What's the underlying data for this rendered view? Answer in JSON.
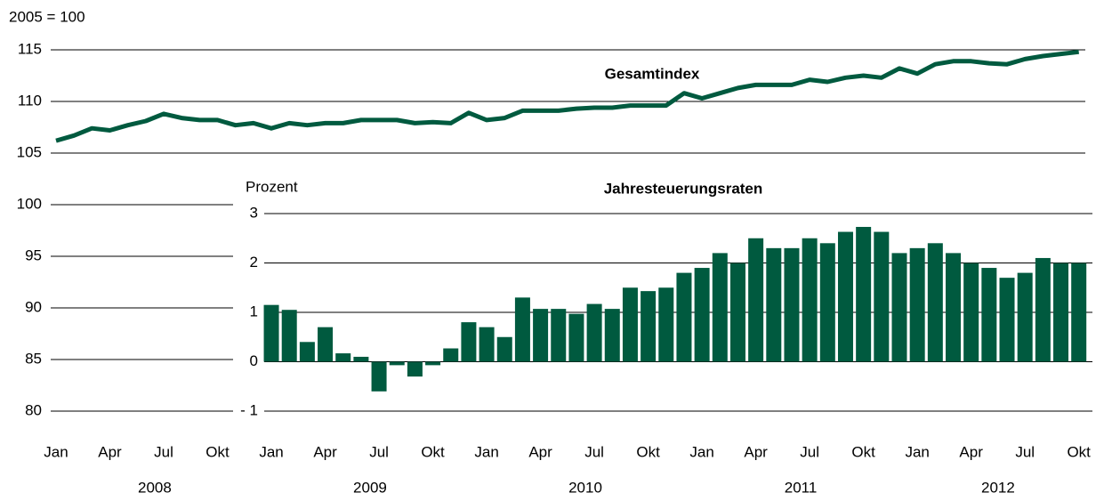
{
  "chart_data": [
    {
      "type": "line",
      "y_label": "2005 = 100",
      "categories": [
        "Jan",
        null,
        null,
        "Apr",
        null,
        null,
        "Jul",
        null,
        null,
        "Okt",
        null,
        null,
        "Jan",
        null,
        null,
        "Apr",
        null,
        null,
        "Jul",
        null,
        null,
        "Okt",
        null,
        null,
        "Jan",
        null,
        null,
        "Apr",
        null,
        null,
        "Jul",
        null,
        null,
        "Okt",
        null,
        null,
        "Jan",
        null,
        null,
        "Apr",
        null,
        null,
        "Jul",
        null,
        null,
        "Okt",
        null,
        null,
        "Jan",
        null,
        null,
        "Apr",
        null,
        null,
        "Jul",
        null,
        null,
        "Okt"
      ],
      "years": [
        "2008",
        "2009",
        "2010",
        "2011",
        "2012"
      ],
      "series": [
        {
          "name": "Gesamtindex",
          "color": "#005a3f",
          "values": [
            106.2,
            106.7,
            107.4,
            107.2,
            107.7,
            108.1,
            108.8,
            108.4,
            108.2,
            108.2,
            107.7,
            107.9,
            107.4,
            107.9,
            107.7,
            107.9,
            107.9,
            108.2,
            108.2,
            108.2,
            107.9,
            108.0,
            107.9,
            108.9,
            108.2,
            108.4,
            109.1,
            109.1,
            109.1,
            109.3,
            109.4,
            109.4,
            109.6,
            109.6,
            109.6,
            110.8,
            110.3,
            110.8,
            111.3,
            111.6,
            111.6,
            111.6,
            112.1,
            111.9,
            112.3,
            112.5,
            112.3,
            113.2,
            112.7,
            113.6,
            113.9,
            113.9,
            113.7,
            113.6,
            114.1,
            114.4,
            114.6,
            114.8
          ]
        }
      ],
      "ylim": [
        80,
        115
      ],
      "yticks": [
        80,
        85,
        90,
        95,
        100,
        105,
        110,
        115
      ],
      "grid": true
    },
    {
      "type": "bar",
      "title": "Jahresteuerungsraten",
      "y_label": "Prozent",
      "color": "#005a3f",
      "values": [
        null,
        null,
        null,
        null,
        null,
        null,
        null,
        null,
        null,
        null,
        null,
        null,
        1.15,
        1.05,
        0.4,
        0.7,
        0.17,
        0.1,
        -0.6,
        -0.07,
        -0.3,
        -0.07,
        0.27,
        0.8,
        0.7,
        0.5,
        1.3,
        1.07,
        1.07,
        0.97,
        1.17,
        1.07,
        1.5,
        1.43,
        1.5,
        1.8,
        1.9,
        2.2,
        2.0,
        2.5,
        2.3,
        2.3,
        2.5,
        2.4,
        2.63,
        2.73,
        2.63,
        2.2,
        2.3,
        2.4,
        2.2,
        2.0,
        1.9,
        1.7,
        1.8,
        2.1,
        2.0,
        2.0
      ],
      "ylim": [
        -1,
        3
      ],
      "yticks": [
        {
          "value": -1,
          "label": "- 1"
        },
        0,
        1,
        2,
        3
      ],
      "grid": true
    }
  ]
}
